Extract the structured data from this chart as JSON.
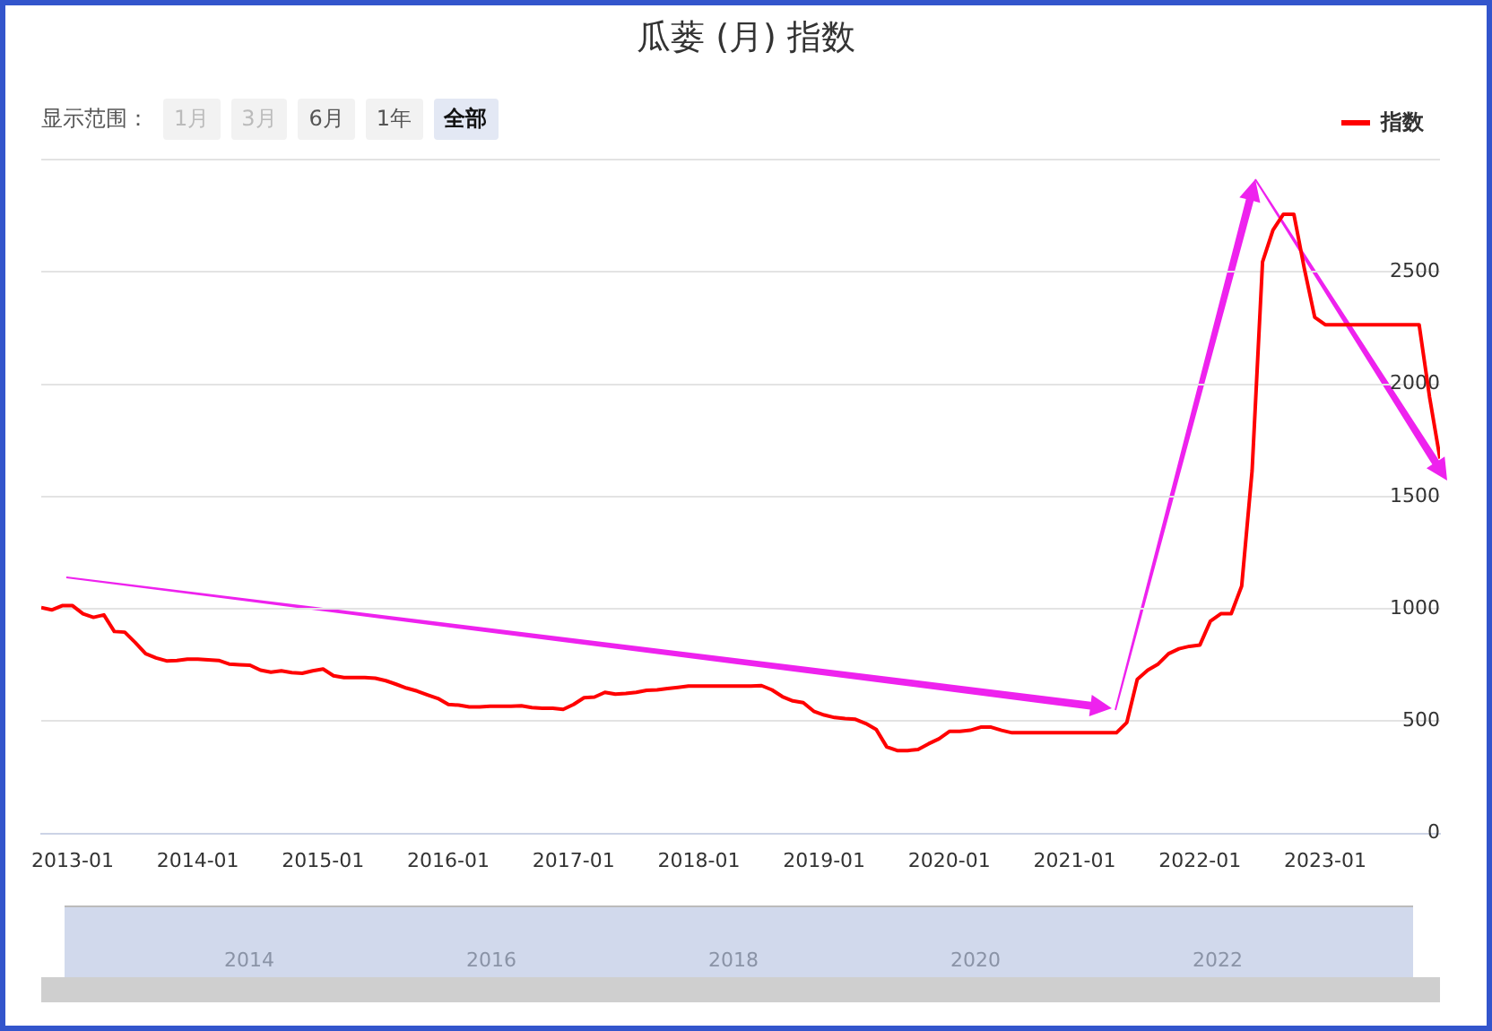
{
  "chart_data": {
    "type": "line",
    "title": "瓜蒌 (月) 指数",
    "annotations": [
      "显示范围：",
      "1月",
      "3月",
      "6月",
      "1年",
      "全部",
      "2014",
      "2016",
      "2018",
      "2020",
      "2022"
    ],
    "x": [
      "2012-10",
      "2012-11",
      "2012-12",
      "2013-01",
      "2013-02",
      "2013-03",
      "2013-04",
      "2013-05",
      "2013-06",
      "2013-07",
      "2013-08",
      "2013-09",
      "2013-10",
      "2013-11",
      "2013-12",
      "2014-01",
      "2014-02",
      "2014-03",
      "2014-04",
      "2014-05",
      "2014-06",
      "2014-07",
      "2014-08",
      "2014-09",
      "2014-10",
      "2014-11",
      "2014-12",
      "2015-01",
      "2015-02",
      "2015-03",
      "2015-04",
      "2015-05",
      "2015-06",
      "2015-07",
      "2015-08",
      "2015-09",
      "2015-10",
      "2015-11",
      "2015-12",
      "2016-01",
      "2016-02",
      "2016-03",
      "2016-04",
      "2016-05",
      "2016-06",
      "2016-07",
      "2016-08",
      "2016-09",
      "2016-10",
      "2016-11",
      "2016-12",
      "2017-01",
      "2017-02",
      "2017-03",
      "2017-04",
      "2017-05",
      "2017-06",
      "2017-07",
      "2017-08",
      "2017-09",
      "2017-10",
      "2017-11",
      "2017-12",
      "2018-01",
      "2018-02",
      "2018-03",
      "2018-04",
      "2018-05",
      "2018-06",
      "2018-07",
      "2018-08",
      "2018-09",
      "2018-10",
      "2018-11",
      "2018-12",
      "2019-01",
      "2019-02",
      "2019-03",
      "2019-04",
      "2019-05",
      "2019-06",
      "2019-07",
      "2019-08",
      "2019-09",
      "2019-10",
      "2019-11",
      "2019-12",
      "2020-01",
      "2020-02",
      "2020-03",
      "2020-04",
      "2020-05",
      "2020-06",
      "2020-07",
      "2020-08",
      "2020-09",
      "2020-10",
      "2020-11",
      "2020-12",
      "2021-01",
      "2021-02",
      "2021-03",
      "2021-04",
      "2021-05",
      "2021-06",
      "2021-07",
      "2021-08",
      "2021-09",
      "2021-10",
      "2021-11",
      "2021-12",
      "2022-01",
      "2022-02",
      "2022-03",
      "2022-04",
      "2022-05",
      "2022-06",
      "2022-07",
      "2022-08",
      "2022-09",
      "2022-10",
      "2022-11",
      "2022-12",
      "2023-01",
      "2023-02",
      "2023-03",
      "2023-04",
      "2023-05",
      "2023-06",
      "2023-07",
      "2023-08",
      "2023-09",
      "2023-10",
      "2023-11",
      "2023-12"
    ],
    "series": [
      {
        "name": "指数",
        "color": "#ff0000",
        "values": [
          1005,
          995,
          1014,
          1014,
          978,
          962,
          973,
          899,
          896,
          850,
          800,
          781,
          768,
          770,
          776,
          776,
          773,
          770,
          754,
          751,
          749,
          727,
          718,
          724,
          716,
          713,
          724,
          732,
          702,
          694,
          694,
          694,
          691,
          680,
          664,
          647,
          634,
          617,
          601,
          574,
          571,
          563,
          563,
          566,
          566,
          566,
          568,
          560,
          557,
          557,
          552,
          574,
          604,
          607,
          628,
          620,
          623,
          628,
          637,
          639,
          645,
          650,
          656,
          656,
          656,
          656,
          656,
          656,
          656,
          658,
          639,
          609,
          590,
          582,
          544,
          527,
          516,
          511,
          508,
          489,
          462,
          385,
          369,
          369,
          374,
          399,
          421,
          454,
          454,
          459,
          473,
          473,
          459,
          448,
          448,
          448,
          448,
          448,
          448,
          448,
          448,
          448,
          448,
          448,
          494,
          686,
          727,
          754,
          800,
          822,
          833,
          839,
          945,
          978,
          978,
          1101,
          1615,
          2544,
          2686,
          2757,
          2757,
          2516,
          2298,
          2265,
          2265,
          2265,
          2265,
          2265,
          2265,
          2265,
          2265,
          2265,
          2265,
          1943,
          1669
        ]
      }
    ],
    "xlim": [
      "2012-10",
      "2023-12"
    ],
    "xticks": [
      "2013-01",
      "2014-01",
      "2015-01",
      "2016-01",
      "2017-01",
      "2018-01",
      "2019-01",
      "2020-01",
      "2021-01",
      "2022-01",
      "2023-01"
    ],
    "ylim": [
      0,
      3000
    ],
    "yticks": [
      0,
      500,
      1000,
      1500,
      2000,
      2500,
      {
        "value": 3000,
        "label": null
      }
    ],
    "grid": "y",
    "legend": "top right",
    "marker": "none",
    "line_style": "solid"
  }
}
